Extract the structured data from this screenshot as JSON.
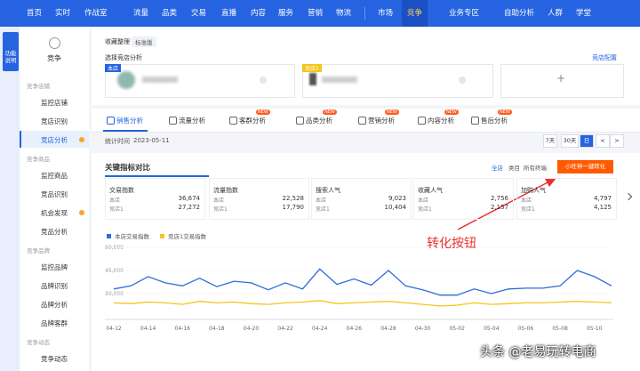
{
  "nav": {
    "items": [
      "首页",
      "实时",
      "作战室",
      "流量",
      "品类",
      "交易",
      "直播",
      "内容",
      "服务",
      "营销",
      "物流",
      "市场",
      "竞争",
      "业务专区",
      "自助分析",
      "人群",
      "学堂"
    ],
    "active": 12
  },
  "side_badge": "功能说明",
  "sidebar": {
    "title": "竞争",
    "groups": [
      {
        "title": "竞争店铺",
        "items": [
          {
            "label": "监控店铺"
          },
          {
            "label": "竞店识别"
          },
          {
            "label": "竞店分析",
            "active": true,
            "dot": true
          }
        ]
      },
      {
        "title": "竞争商品",
        "items": [
          {
            "label": "监控商品"
          },
          {
            "label": "竞品识别"
          },
          {
            "label": "机会发现",
            "dot": true
          },
          {
            "label": "竞品分析"
          }
        ]
      },
      {
        "title": "竞争品牌",
        "items": [
          {
            "label": "监控品牌"
          },
          {
            "label": "品牌识别"
          },
          {
            "label": "品牌分析"
          },
          {
            "label": "品牌客群"
          }
        ]
      },
      {
        "title": "竞争动态",
        "items": [
          {
            "label": "竞争动态"
          }
        ]
      }
    ]
  },
  "header": {
    "collect": "收藏整理",
    "edition": "标准版",
    "select": "选择竞店分析",
    "config": "竞店配置",
    "shops": [
      "本店",
      "竞店1"
    ],
    "add": "+"
  },
  "tabs": [
    {
      "label": "销售分析"
    },
    {
      "label": "流量分析"
    },
    {
      "label": "客群分析",
      "new": true
    },
    {
      "label": "品类分析",
      "new": true
    },
    {
      "label": "营销分析",
      "new": true
    },
    {
      "label": "内容分析",
      "new": true
    },
    {
      "label": "售后分析",
      "new": true
    }
  ],
  "new_badge": "NEW",
  "stat": {
    "label": "统计时间",
    "date": "2023-05-11"
  },
  "ranges": [
    "7天",
    "30天",
    "日",
    "<",
    ">"
  ],
  "section": {
    "title": "关键指标对比",
    "scope": [
      "全店",
      "类目"
    ],
    "terminal": "所有终端",
    "button": "小旺神一键转化"
  },
  "metrics": [
    {
      "name": "交易指数",
      "rows": [
        {
          "label": "本店",
          "value": "36,674"
        },
        {
          "label": "竞店1",
          "value": "27,272"
        }
      ]
    },
    {
      "name": "流量指数",
      "rows": [
        {
          "label": "本店",
          "value": "22,528"
        },
        {
          "label": "竞店1",
          "value": "17,790"
        }
      ]
    },
    {
      "name": "搜索人气",
      "rows": [
        {
          "label": "本店",
          "value": "9,023"
        },
        {
          "label": "竞店1",
          "value": "10,404"
        }
      ]
    },
    {
      "name": "收藏人气",
      "rows": [
        {
          "label": "本店",
          "value": "2,756"
        },
        {
          "label": "竞店1",
          "value": "2,157"
        }
      ]
    },
    {
      "name": "加购人气",
      "rows": [
        {
          "label": "本店",
          "value": "4,797"
        },
        {
          "label": "竞店1",
          "value": "4,125"
        }
      ]
    }
  ],
  "chart": {
    "type": "line",
    "categories": [
      "04-12",
      null,
      "04-14",
      null,
      "04-16",
      null,
      "04-18",
      null,
      "04-20",
      null,
      "04-22",
      null,
      "04-24",
      null,
      "04-26",
      null,
      "04-28",
      null,
      "04-30",
      null,
      "05-02",
      null,
      "05-04",
      null,
      "05-06",
      null,
      "05-08",
      null,
      "05-10",
      null
    ],
    "series": [
      {
        "name": "本店交易指数",
        "color": "#2f6bd8",
        "values": [
          33000,
          35000,
          41000,
          37000,
          35000,
          40000,
          34500,
          38000,
          37000,
          32500,
          37000,
          33000,
          46000,
          36000,
          39500,
          35500,
          45000,
          35000,
          32500,
          29000,
          29000,
          33000,
          30000,
          33000,
          33500,
          33500,
          35000,
          45000,
          41000,
          35000
        ]
      },
      {
        "name": "竞店1交易指数",
        "color": "#f5c518",
        "values": [
          24000,
          23500,
          24500,
          24000,
          23000,
          25000,
          24000,
          24500,
          23500,
          23000,
          24000,
          24500,
          25500,
          23500,
          24000,
          24500,
          25000,
          24000,
          23000,
          22000,
          22500,
          24000,
          23000,
          23500,
          24000,
          24000,
          24500,
          25000,
          24500,
          24000
        ]
      }
    ],
    "ylim": [
      15000,
      60000
    ],
    "yticks": [
      {
        "value": 30000,
        "label": "30,000"
      },
      {
        "value": 45000,
        "label": "45,000"
      },
      {
        "value": 60000,
        "label": "60,000"
      }
    ],
    "grid": true
  },
  "annotation": "转化按钮",
  "watermark": "头条 @老易玩转电商"
}
